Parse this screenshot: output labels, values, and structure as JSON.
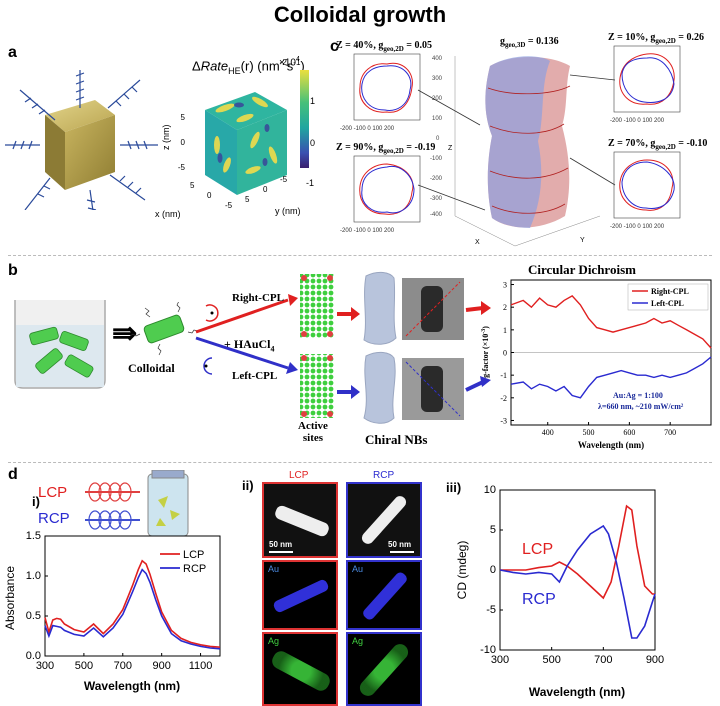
{
  "title": "Colloidal growth",
  "panels": {
    "a": {
      "label": "a",
      "colorbar_title_prefix": "Δ",
      "colorbar_title_italic": "Rate",
      "colorbar_title_sub": "HE",
      "colorbar_title_rest": "(r) (nm",
      "colorbar_title_exp1": "-2",
      "colorbar_title_mid": "s",
      "colorbar_title_exp2": "-1",
      "colorbar_title_end": ")",
      "colorbar_scale": "×10",
      "colorbar_scale_exp": "4",
      "colorbar_ticks": [
        "1",
        "0",
        "-1"
      ],
      "axis_x": "x (nm)",
      "axis_y": "y (nm)",
      "axis_z": "z (nm)",
      "ticks_z": [
        "5",
        "0",
        "-5"
      ],
      "ticks_x": [
        "5",
        "0",
        "-5"
      ],
      "ticks_y": [
        "0",
        "5",
        "-5"
      ]
    },
    "c": {
      "label": "c",
      "subplots": [
        {
          "title": "Z = 40%, g",
          "sub": "geo,2D",
          "val": " = 0.05"
        },
        {
          "title": "Z = 90%, g",
          "sub": "geo,2D",
          "val": " = -0.19"
        },
        {
          "title": "Z = 10%, g",
          "sub": "geo,2D",
          "val": " = 0.26"
        },
        {
          "title": "Z = 70%, g",
          "sub": "geo,2D",
          "val": " = -0.10"
        }
      ],
      "center_title": "g",
      "center_sub": "geo,3D",
      "center_val": " = 0.136",
      "tick_x": [
        "-200",
        "-100",
        "0",
        "100",
        "200"
      ],
      "tick_y": [
        "200",
        "100",
        "0",
        "-100",
        "-200"
      ],
      "axis_x": "X",
      "axis_y": "Y",
      "center_ticks": [
        "400",
        "300",
        "200",
        "100",
        "0",
        "-100",
        "-200",
        "-300",
        "-400"
      ],
      "center_axis": [
        "X",
        "Y",
        "Z"
      ]
    },
    "b": {
      "label": "b",
      "right_cpl": "Right-CPL",
      "left_cpl": "Left-CPL",
      "reagent": "+ HAuCl",
      "reagent_sub": "4",
      "colloidal": "Colloidal",
      "active_sites": "Active\nsites",
      "chiral_nbs": "Chiral NBs",
      "cd_title": "Circular Dichroism",
      "legend": [
        "Right-CPL",
        "Left-CPL"
      ],
      "ylabel": "g-factor (×10",
      "ylabel_exp": "-3",
      "ylabel_end": ")",
      "xlabel": "Wavelength (nm)",
      "annot1": "Au:Ag = 1:100",
      "annot2": "λ=660 nm, ~210 mW/cm²",
      "xticks": [
        "400",
        "500",
        "600",
        "700"
      ],
      "yticks": [
        "3",
        "2",
        "1",
        "0",
        "-1",
        "-2",
        "-3"
      ]
    },
    "d": {
      "label": "d",
      "i": {
        "label": "i)",
        "lcp": "LCP",
        "rcp": "RCP",
        "legend": [
          "LCP",
          "RCP"
        ],
        "ylabel": "Absorbance",
        "xlabel": "Wavelength (nm)",
        "xticks": [
          "300",
          "500",
          "700",
          "900",
          "1100"
        ],
        "yticks": [
          "0.0",
          "0.5",
          "1.0",
          "1.5"
        ]
      },
      "ii": {
        "label": "ii)",
        "col_labels": [
          "LCP",
          "RCP"
        ],
        "scale": "50 nm",
        "elements": [
          "Au",
          "Ag"
        ]
      },
      "iii": {
        "label": "iii)",
        "lcp": "LCP",
        "rcp": "RCP",
        "ylabel": "CD (mdeg)",
        "xlabel": "Wavelength (nm)",
        "xticks": [
          "300",
          "500",
          "700",
          "900"
        ],
        "yticks": [
          "10",
          "5",
          "0",
          "-5",
          "-10"
        ]
      }
    }
  },
  "colors": {
    "red": "#e02020",
    "blue": "#2a2ad0"
  },
  "chart_data": [
    {
      "type": "line",
      "title": "Circular Dichroism",
      "xlabel": "Wavelength (nm)",
      "ylabel": "g-factor (×10-3)",
      "xlim": [
        310,
        800
      ],
      "ylim": [
        -3.2,
        3.2
      ],
      "series": [
        {
          "name": "Right-CPL",
          "x": [
            310,
            340,
            360,
            380,
            400,
            420,
            440,
            460,
            480,
            500,
            520,
            540,
            560,
            580,
            600,
            620,
            640,
            660,
            680,
            700,
            720,
            740,
            760,
            780,
            800
          ],
          "y": [
            2.1,
            2.3,
            2.0,
            2.4,
            2.1,
            2.0,
            2.3,
            2.5,
            2.1,
            1.5,
            1.1,
            1.0,
            0.9,
            1.0,
            1.1,
            1.2,
            1.3,
            1.5,
            1.3,
            1.4,
            1.2,
            1.0,
            0.8,
            0.6,
            0.2
          ]
        },
        {
          "name": "Left-CPL",
          "x": [
            310,
            340,
            360,
            380,
            400,
            420,
            440,
            460,
            480,
            500,
            520,
            540,
            560,
            580,
            600,
            620,
            640,
            660,
            680,
            700,
            720,
            740,
            760,
            780,
            800
          ],
          "y": [
            -1.4,
            -1.3,
            -1.6,
            -1.4,
            -1.5,
            -1.7,
            -1.5,
            -1.9,
            -2.0,
            -1.5,
            -1.1,
            -1.0,
            -0.9,
            -0.8,
            -0.9,
            -1.0,
            -1.0,
            -1.1,
            -1.0,
            -1.1,
            -1.0,
            -0.9,
            -0.7,
            -0.5,
            -0.2
          ]
        }
      ]
    },
    {
      "type": "line",
      "xlabel": "Wavelength (nm)",
      "ylabel": "Absorbance",
      "xlim": [
        300,
        1200
      ],
      "ylim": [
        0,
        1.5
      ],
      "series": [
        {
          "name": "LCP",
          "x": [
            300,
            320,
            340,
            360,
            380,
            400,
            450,
            500,
            550,
            600,
            650,
            700,
            750,
            780,
            800,
            820,
            840,
            870,
            900,
            950,
            1000,
            1050,
            1100,
            1150,
            1200
          ],
          "y": [
            0.48,
            0.3,
            0.45,
            0.47,
            0.46,
            0.4,
            0.33,
            0.3,
            0.4,
            0.28,
            0.4,
            0.58,
            0.88,
            1.08,
            1.19,
            1.15,
            1.02,
            0.78,
            0.55,
            0.32,
            0.22,
            0.17,
            0.14,
            0.12,
            0.11
          ]
        },
        {
          "name": "RCP",
          "x": [
            300,
            320,
            340,
            360,
            380,
            400,
            450,
            500,
            550,
            600,
            650,
            700,
            750,
            780,
            800,
            820,
            840,
            870,
            900,
            950,
            1000,
            1050,
            1100,
            1150,
            1200
          ],
          "y": [
            0.38,
            0.25,
            0.38,
            0.37,
            0.36,
            0.32,
            0.27,
            0.25,
            0.35,
            0.24,
            0.35,
            0.52,
            0.8,
            0.98,
            1.08,
            1.03,
            0.92,
            0.7,
            0.5,
            0.28,
            0.19,
            0.15,
            0.12,
            0.1,
            0.09
          ]
        }
      ]
    },
    {
      "type": "line",
      "xlabel": "Wavelength (nm)",
      "ylabel": "CD (mdeg)",
      "xlim": [
        300,
        900
      ],
      "ylim": [
        -10,
        10
      ],
      "series": [
        {
          "name": "LCP",
          "x": [
            300,
            350,
            400,
            450,
            500,
            530,
            560,
            600,
            650,
            700,
            730,
            760,
            790,
            810,
            830,
            860,
            890,
            900
          ],
          "y": [
            0,
            0,
            0,
            0.3,
            0.5,
            1.0,
            0.5,
            -0.5,
            -2.0,
            -3.5,
            -1.5,
            3.0,
            8.0,
            7.5,
            3.0,
            -2.0,
            -3.0,
            -3.0
          ]
        },
        {
          "name": "RCP",
          "x": [
            300,
            350,
            400,
            450,
            500,
            530,
            560,
            600,
            650,
            700,
            720,
            750,
            780,
            810,
            830,
            860,
            890,
            900
          ],
          "y": [
            0,
            -0.3,
            -0.5,
            -0.3,
            -0.5,
            -1.5,
            0.5,
            2.5,
            4.5,
            5.5,
            4.5,
            1.0,
            -3.5,
            -8.5,
            -8.5,
            -7.0,
            -4.0,
            -3.0
          ]
        }
      ]
    }
  ]
}
